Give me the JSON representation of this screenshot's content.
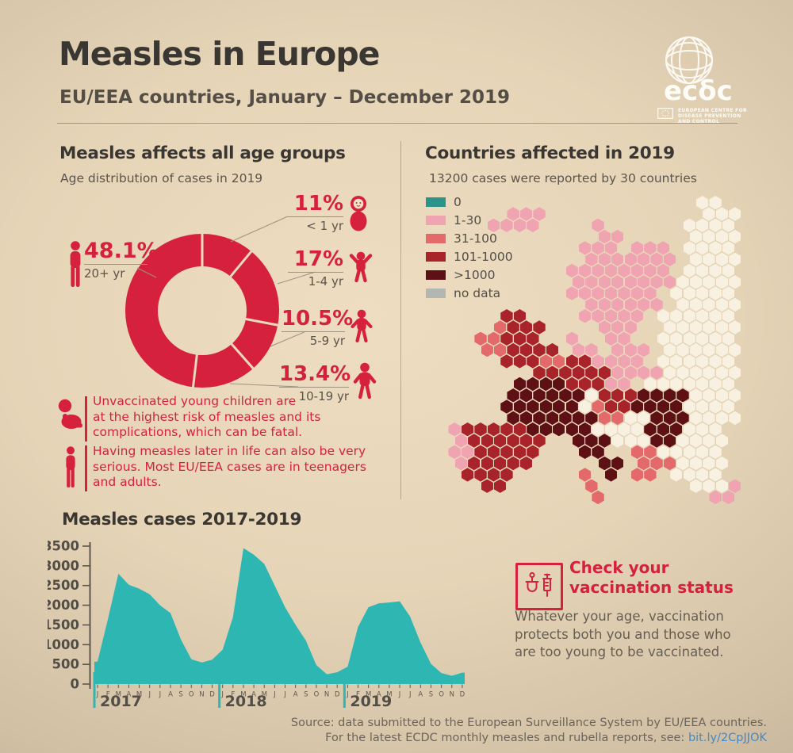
{
  "header": {
    "title": "Measles in Europe",
    "subtitle": "EU/EEA countries, January – December 2019"
  },
  "logo": {
    "wordmark": "ecδc",
    "caption_lines": [
      "EUROPEAN CENTRE FOR",
      "DISEASE PREVENTION",
      "AND CONTROL"
    ]
  },
  "age_section": {
    "heading": "Measles affects all age groups",
    "subheading": "Age distribution of cases in 2019",
    "groups": [
      {
        "pct": "11%",
        "range": "< 1 yr",
        "icon": "infant-icon"
      },
      {
        "pct": "17%",
        "range": "1-4 yr",
        "icon": "toddler-icon"
      },
      {
        "pct": "10.5%",
        "range": "5-9 yr",
        "icon": "child-icon"
      },
      {
        "pct": "13.4%",
        "range": "10-19 yr",
        "icon": "teen-icon"
      },
      {
        "pct": "48.1%",
        "range": "20+ yr",
        "icon": "adult-icon"
      }
    ],
    "notes": [
      {
        "icon": "sitting-baby-icon",
        "lines": [
          "Unvaccinated young children are",
          "at the highest risk of measles and its",
          "complications, which can be fatal."
        ]
      },
      {
        "icon": "standing-adult-icon",
        "lines": [
          "Having measles later in life can also be very",
          "serious. Most EU/EEA cases are in teenagers",
          "and adults."
        ]
      }
    ]
  },
  "map_section": {
    "heading": "Countries affected in 2019",
    "subheading": "13200 cases were reported by 30 countries",
    "legend": [
      {
        "label": "0",
        "color": "#2a948a"
      },
      {
        "label": "1-30",
        "color": "#f0a3b0"
      },
      {
        "label": "31-100",
        "color": "#e3696a"
      },
      {
        "label": "101-1000",
        "color": "#a8242a"
      },
      {
        "label": ">1000",
        "color": "#5e1115"
      },
      {
        "label": "no data",
        "color": "#b2b7b1"
      }
    ],
    "hex_palette": {
      "P": "#f0a3b0",
      "S": "#e3696a",
      "R": "#a8242a",
      "M": "#5e1115",
      "W": "#f8f0e0",
      "T": "#2a948a"
    },
    "hex_rows": [
      "....................WW.....",
      ".....PPP............WWW....",
      "....PPPP....P......WWWW....",
      "............PP.....WWWW....",
      "...........PPP.PPP.WWWW....",
      "...........PPPPPPP.WWWW....",
      "..........PPPPPPPP.WWWW....",
      "..........PPPPPPPPWWWWW....",
      "..........PPPPPPP.WWWWW....",
      "...........PPPPPP.WWWWW....",
      ".....RR....PPPPP.WWWWWW....",
      "....SRRR....PPP..WWWWWW....",
      "...SSRRR..P..PP..WWWWWW....",
      "...SSRRRR.PP.PPP.WWWWWW....",
      ".....RRRSSRRPPPP.WWWWWW....",
      ".......RRRRRRPPPPWWWWWW....",
      "......MMMMRRRPP.WWWWWWW....",
      ".....MMMMMMWRRRMMMMWWWW....",
      ".....MMMMMMWSRRMMMMWWWW....",
      ".....MMMMMMMSSWWMMMWWWW....",
      ".PRRRRRMMMMMWWWWMMMWWW.....",
      ".PRRRRRR..MMMWWWMMWWWW.....",
      ".PPRRRRR...MM..SSWWWWW.....",
      ".PRRRRR.....MM.SSSWWWW.....",
      "..RRRR.....S.M.SS.WWWW.....",
      "...RR......S.......WWWP....",
      "............S........PP...."
    ]
  },
  "trend_section": {
    "heading": "Measles cases 2017-2019"
  },
  "chart_data": [
    {
      "type": "pie",
      "title": "Age distribution of cases in 2019",
      "labels": [
        "< 1 yr",
        "1-4 yr",
        "5-9 yr",
        "10-19 yr",
        "20+ yr"
      ],
      "values": [
        11,
        17,
        10.5,
        13.4,
        48.1
      ],
      "unit": "%",
      "color": "#d5213e",
      "donut": true
    },
    {
      "type": "area",
      "title": "Measles cases 2017-2019",
      "years": [
        "2017",
        "2018",
        "2019"
      ],
      "month_letters": [
        "J",
        "F",
        "M",
        "A",
        "M",
        "J",
        "J",
        "A",
        "S",
        "O",
        "N",
        "D"
      ],
      "values": [
        570,
        1650,
        2800,
        2520,
        2420,
        2280,
        2000,
        1800,
        1130,
        630,
        550,
        620,
        870,
        1700,
        3450,
        3280,
        3050,
        2500,
        1950,
        1500,
        1100,
        480,
        250,
        300,
        440,
        1450,
        1950,
        2050,
        2070,
        2100,
        1710,
        1050,
        510,
        280,
        210,
        290
      ],
      "ylim": [
        0,
        3500
      ],
      "yticks": [
        0,
        500,
        1000,
        1500,
        2000,
        2500,
        3000,
        3500
      ],
      "color": "#2eb6b2",
      "grid": false,
      "legend_position": "none"
    }
  ],
  "vaccination": {
    "icon": "syringe-icon",
    "title_lines": [
      "Check your",
      "vaccination status"
    ],
    "body_lines": [
      "Whatever your age, vaccination",
      "protects both you and those who",
      "are too young to be vaccinated."
    ]
  },
  "footer": {
    "line1": "Source: data submitted to the European Surveillance System by EU/EEA countries.",
    "line2_prefix": "For the latest ECDC monthly measles and rubella reports, see: ",
    "link": "bit.ly/2CpJJOK"
  }
}
